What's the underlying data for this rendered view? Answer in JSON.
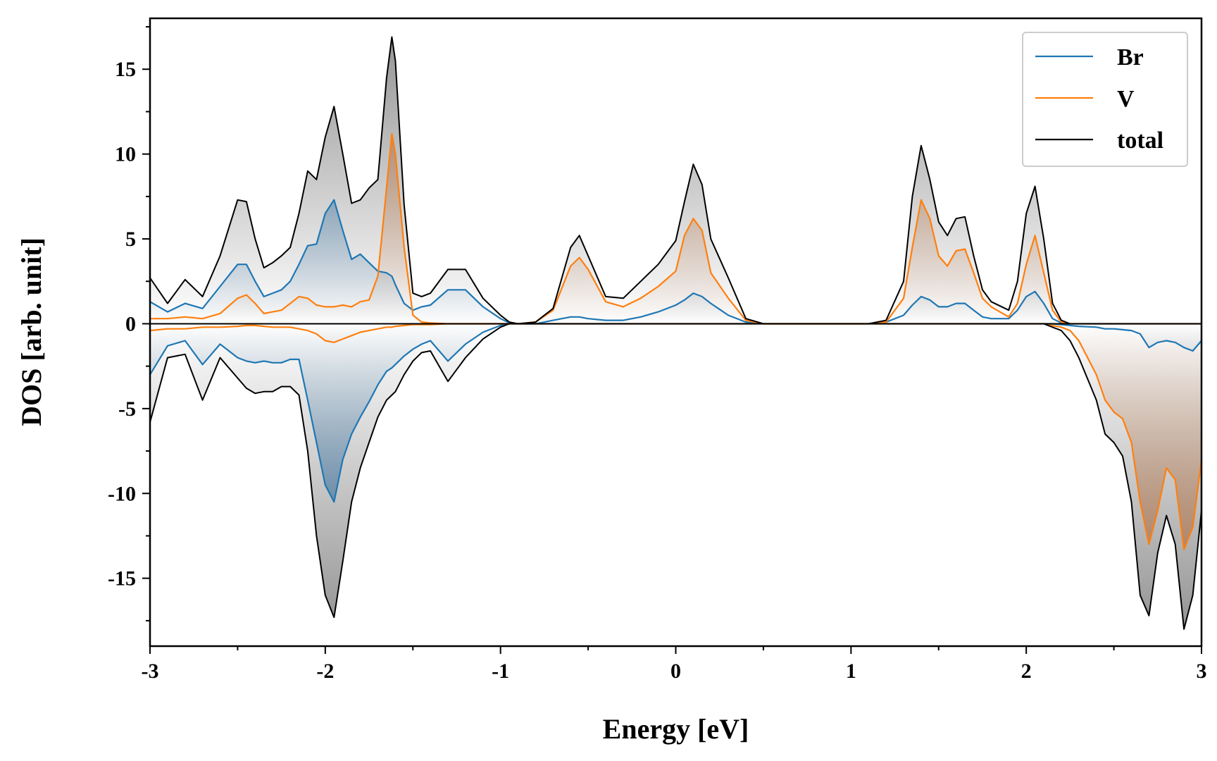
{
  "chart_data": {
    "type": "area",
    "title": "",
    "xlabel": "Energy [eV]",
    "ylabel": "DOS [arb. unit]",
    "xlim": [
      -3,
      3
    ],
    "ylim": [
      -19,
      18
    ],
    "xticks": [
      "-3",
      "-2",
      "-1",
      "0",
      "1",
      "2",
      "3"
    ],
    "yticks": [
      "-15",
      "-10",
      "-5",
      "0",
      "5",
      "10",
      "15"
    ],
    "grid": false,
    "legend_position": "top-right",
    "colors": {
      "Br": "#1f77b4",
      "V": "#ff7f0e",
      "total": "#000000"
    },
    "x": [
      -3.0,
      -2.9,
      -2.8,
      -2.7,
      -2.6,
      -2.5,
      -2.45,
      -2.4,
      -2.35,
      -2.3,
      -2.25,
      -2.2,
      -2.15,
      -2.1,
      -2.05,
      -2.0,
      -1.95,
      -1.9,
      -1.85,
      -1.8,
      -1.75,
      -1.7,
      -1.65,
      -1.62,
      -1.6,
      -1.55,
      -1.5,
      -1.45,
      -1.4,
      -1.3,
      -1.2,
      -1.1,
      -1.0,
      -0.95,
      -0.9,
      -0.8,
      -0.7,
      -0.6,
      -0.55,
      -0.5,
      -0.4,
      -0.3,
      -0.2,
      -0.1,
      0.0,
      0.05,
      0.1,
      0.15,
      0.2,
      0.3,
      0.4,
      0.5,
      0.7,
      0.9,
      1.1,
      1.2,
      1.3,
      1.35,
      1.4,
      1.45,
      1.5,
      1.55,
      1.6,
      1.65,
      1.7,
      1.75,
      1.8,
      1.9,
      1.95,
      2.0,
      2.05,
      2.1,
      2.15,
      2.2,
      2.25,
      2.3,
      2.4,
      2.45,
      2.5,
      2.55,
      2.6,
      2.65,
      2.7,
      2.75,
      2.8,
      2.85,
      2.9,
      2.95,
      3.0
    ],
    "series": [
      {
        "name": "Br",
        "up": [
          1.3,
          0.7,
          1.2,
          0.9,
          2.2,
          3.5,
          3.5,
          2.5,
          1.6,
          1.8,
          2.0,
          2.5,
          3.5,
          4.6,
          4.7,
          6.5,
          7.3,
          5.5,
          3.8,
          4.1,
          3.6,
          3.1,
          3.0,
          2.8,
          2.3,
          1.2,
          0.8,
          1.0,
          1.1,
          2.0,
          2.0,
          1.0,
          0.3,
          0.05,
          0.0,
          0.0,
          0.2,
          0.4,
          0.4,
          0.3,
          0.2,
          0.2,
          0.4,
          0.7,
          1.1,
          1.4,
          1.8,
          1.6,
          1.2,
          0.5,
          0.1,
          0.0,
          0.0,
          0.0,
          0.0,
          0.1,
          0.5,
          1.1,
          1.6,
          1.4,
          1.0,
          1.0,
          1.2,
          1.2,
          0.8,
          0.4,
          0.3,
          0.3,
          0.8,
          1.6,
          1.9,
          1.2,
          0.3,
          0.05,
          0.0,
          0.0,
          0.0,
          0.0,
          0.0,
          0.0,
          0.0,
          0.0,
          0.0,
          0.0,
          0.0,
          0.0,
          0.0,
          0.0,
          0.0
        ],
        "down": [
          -3.0,
          -1.3,
          -1.0,
          -2.4,
          -1.2,
          -2.0,
          -2.2,
          -2.3,
          -2.2,
          -2.3,
          -2.3,
          -2.1,
          -2.1,
          -4.5,
          -7.0,
          -9.5,
          -10.5,
          -8.0,
          -6.5,
          -5.5,
          -4.6,
          -3.6,
          -2.8,
          -2.6,
          -2.4,
          -1.9,
          -1.5,
          -1.2,
          -1.0,
          -2.2,
          -1.2,
          -0.5,
          -0.1,
          0.0,
          0.0,
          0.0,
          0.0,
          0.0,
          0.0,
          0.0,
          0.0,
          0.0,
          0.0,
          0.0,
          0.0,
          0.0,
          0.0,
          0.0,
          0.0,
          0.0,
          0.0,
          0.0,
          0.0,
          0.0,
          0.0,
          0.0,
          0.0,
          0.0,
          0.0,
          0.0,
          0.0,
          0.0,
          0.0,
          0.0,
          0.0,
          0.0,
          0.0,
          0.0,
          0.0,
          0.0,
          0.0,
          0.0,
          0.0,
          -0.05,
          -0.1,
          -0.15,
          -0.2,
          -0.3,
          -0.3,
          -0.35,
          -0.4,
          -0.6,
          -1.4,
          -1.1,
          -1.0,
          -1.1,
          -1.4,
          -1.6,
          -1.0
        ]
      },
      {
        "name": "V",
        "up": [
          0.3,
          0.3,
          0.4,
          0.3,
          0.6,
          1.5,
          1.7,
          1.2,
          0.6,
          0.7,
          0.8,
          1.2,
          1.6,
          1.5,
          1.1,
          1.0,
          1.0,
          1.1,
          1.0,
          1.3,
          1.4,
          2.8,
          8.0,
          11.2,
          10.0,
          4.5,
          0.5,
          0.1,
          0.05,
          0.0,
          0.0,
          0.0,
          0.0,
          0.0,
          0.0,
          0.1,
          0.8,
          3.4,
          3.9,
          3.2,
          1.3,
          1.0,
          1.5,
          2.2,
          3.1,
          5.2,
          6.2,
          5.5,
          3.0,
          1.5,
          0.2,
          0.0,
          0.0,
          0.0,
          0.0,
          0.1,
          1.5,
          4.5,
          7.3,
          6.2,
          4.0,
          3.4,
          4.3,
          4.4,
          3.0,
          1.5,
          1.0,
          0.4,
          1.2,
          3.5,
          5.2,
          3.0,
          0.8,
          0.1,
          0.0,
          0.0,
          0.0,
          0.0,
          0.0,
          0.0,
          0.0,
          0.0,
          0.0,
          0.0,
          0.0,
          0.0,
          0.0,
          0.0,
          0.0
        ],
        "down": [
          -0.4,
          -0.3,
          -0.3,
          -0.2,
          -0.2,
          -0.15,
          -0.1,
          -0.1,
          -0.15,
          -0.2,
          -0.2,
          -0.2,
          -0.3,
          -0.4,
          -0.6,
          -1.0,
          -1.1,
          -0.9,
          -0.7,
          -0.5,
          -0.4,
          -0.3,
          -0.2,
          -0.2,
          -0.15,
          -0.1,
          -0.05,
          -0.05,
          -0.05,
          0.0,
          0.0,
          0.0,
          0.0,
          0.0,
          0.0,
          0.0,
          0.0,
          0.0,
          0.0,
          0.0,
          0.0,
          0.0,
          0.0,
          0.0,
          0.0,
          0.0,
          0.0,
          0.0,
          0.0,
          0.0,
          0.0,
          0.0,
          0.0,
          0.0,
          0.0,
          0.0,
          0.0,
          0.0,
          0.0,
          0.0,
          0.0,
          0.0,
          0.0,
          0.0,
          0.0,
          0.0,
          0.0,
          0.0,
          0.0,
          0.0,
          0.0,
          0.0,
          -0.1,
          -0.2,
          -0.4,
          -1.0,
          -3.0,
          -4.5,
          -5.2,
          -5.6,
          -7.0,
          -10.5,
          -13.0,
          -11.0,
          -8.5,
          -9.2,
          -13.3,
          -12.0,
          -8.0
        ]
      },
      {
        "name": "total",
        "up": [
          2.7,
          1.2,
          2.6,
          1.6,
          4.0,
          7.3,
          7.2,
          5.0,
          3.3,
          3.6,
          4.0,
          4.5,
          6.5,
          9.0,
          8.5,
          11.0,
          12.8,
          10.0,
          7.1,
          7.3,
          8.0,
          8.5,
          14.5,
          16.9,
          15.5,
          7.0,
          1.8,
          1.6,
          1.8,
          3.2,
          3.2,
          1.5,
          0.5,
          0.1,
          0.0,
          0.1,
          0.9,
          4.5,
          5.2,
          4.0,
          1.6,
          1.5,
          2.5,
          3.5,
          4.9,
          7.2,
          9.4,
          8.2,
          5.0,
          2.7,
          0.3,
          0.0,
          0.0,
          0.0,
          0.0,
          0.2,
          2.5,
          7.5,
          10.5,
          8.5,
          6.0,
          5.2,
          6.2,
          6.3,
          4.0,
          2.0,
          1.3,
          0.8,
          2.5,
          6.5,
          8.1,
          5.0,
          1.2,
          0.2,
          0.0,
          0.0,
          0.0,
          0.0,
          0.0,
          0.0,
          0.0,
          0.0,
          0.0,
          0.0,
          0.0,
          0.0,
          0.0,
          0.0,
          0.0
        ],
        "down": [
          -5.8,
          -2.0,
          -1.8,
          -4.5,
          -2.0,
          -3.2,
          -3.8,
          -4.1,
          -4.0,
          -4.0,
          -3.7,
          -3.7,
          -4.2,
          -7.5,
          -12.5,
          -16.0,
          -17.3,
          -14.0,
          -10.5,
          -8.5,
          -7.0,
          -5.5,
          -4.5,
          -4.2,
          -4.0,
          -3.0,
          -2.2,
          -1.7,
          -1.6,
          -3.4,
          -2.0,
          -0.9,
          -0.2,
          0.0,
          0.0,
          0.0,
          0.0,
          0.0,
          0.0,
          0.0,
          0.0,
          0.0,
          0.0,
          0.0,
          0.0,
          0.0,
          0.0,
          0.0,
          0.0,
          0.0,
          0.0,
          0.0,
          0.0,
          0.0,
          0.0,
          0.0,
          0.0,
          0.0,
          0.0,
          0.0,
          0.0,
          0.0,
          0.0,
          0.0,
          0.0,
          0.0,
          0.0,
          0.0,
          0.0,
          0.0,
          0.0,
          0.0,
          -0.2,
          -0.4,
          -1.0,
          -2.0,
          -4.5,
          -6.5,
          -7.0,
          -7.8,
          -10.5,
          -16.0,
          -17.2,
          -13.5,
          -11.3,
          -13.0,
          -18.0,
          -16.0,
          -11.0
        ]
      }
    ]
  }
}
